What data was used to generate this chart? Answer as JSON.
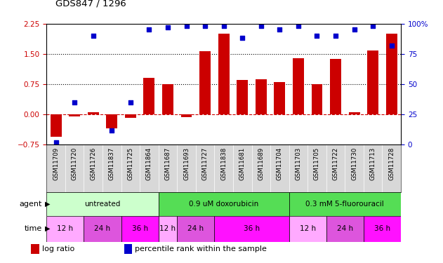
{
  "title": "GDS847 / 1296",
  "samples": [
    "GSM11709",
    "GSM11720",
    "GSM11726",
    "GSM11837",
    "GSM11725",
    "GSM11864",
    "GSM11687",
    "GSM11693",
    "GSM11727",
    "GSM11838",
    "GSM11681",
    "GSM11689",
    "GSM11704",
    "GSM11703",
    "GSM11705",
    "GSM11722",
    "GSM11730",
    "GSM11713",
    "GSM11728"
  ],
  "log_ratio": [
    -0.55,
    -0.05,
    0.05,
    -0.35,
    -0.08,
    0.9,
    0.75,
    -0.07,
    1.57,
    2.0,
    0.85,
    0.88,
    0.8,
    1.4,
    0.75,
    1.38,
    0.05,
    1.58,
    2.0
  ],
  "pct_values": [
    2,
    35,
    90,
    12,
    35,
    95,
    97,
    98,
    98,
    98,
    88,
    98,
    95,
    98,
    90,
    90,
    95,
    98,
    82
  ],
  "bar_color": "#cc0000",
  "dot_color": "#0000cc",
  "ylim_left": [
    -0.75,
    2.25
  ],
  "ylim_right": [
    0,
    100
  ],
  "yticks_left": [
    -0.75,
    0.0,
    0.75,
    1.5,
    2.25
  ],
  "yticks_right": [
    0,
    25,
    50,
    75,
    100
  ],
  "hlines": [
    0.75,
    1.5
  ],
  "agent_groups": [
    {
      "label": "untreated",
      "color": "#ccffcc",
      "start": 0,
      "end": 6
    },
    {
      "label": "0.9 uM doxorubicin",
      "color": "#55dd55",
      "start": 6,
      "end": 13
    },
    {
      "label": "0.3 mM 5-fluorouracil",
      "color": "#55dd55",
      "start": 13,
      "end": 19
    }
  ],
  "time_groups": [
    {
      "label": "12 h",
      "color": "#ffaaff",
      "start": 0,
      "end": 2
    },
    {
      "label": "24 h",
      "color": "#dd55dd",
      "start": 2,
      "end": 4
    },
    {
      "label": "36 h",
      "color": "#ff11ff",
      "start": 4,
      "end": 6
    },
    {
      "label": "12 h",
      "color": "#ffaaff",
      "start": 6,
      "end": 7
    },
    {
      "label": "24 h",
      "color": "#dd55dd",
      "start": 7,
      "end": 9
    },
    {
      "label": "36 h",
      "color": "#ff11ff",
      "start": 9,
      "end": 13
    },
    {
      "label": "12 h",
      "color": "#ffaaff",
      "start": 13,
      "end": 15
    },
    {
      "label": "24 h",
      "color": "#dd55dd",
      "start": 15,
      "end": 17
    },
    {
      "label": "36 h",
      "color": "#ff11ff",
      "start": 17,
      "end": 19
    }
  ]
}
